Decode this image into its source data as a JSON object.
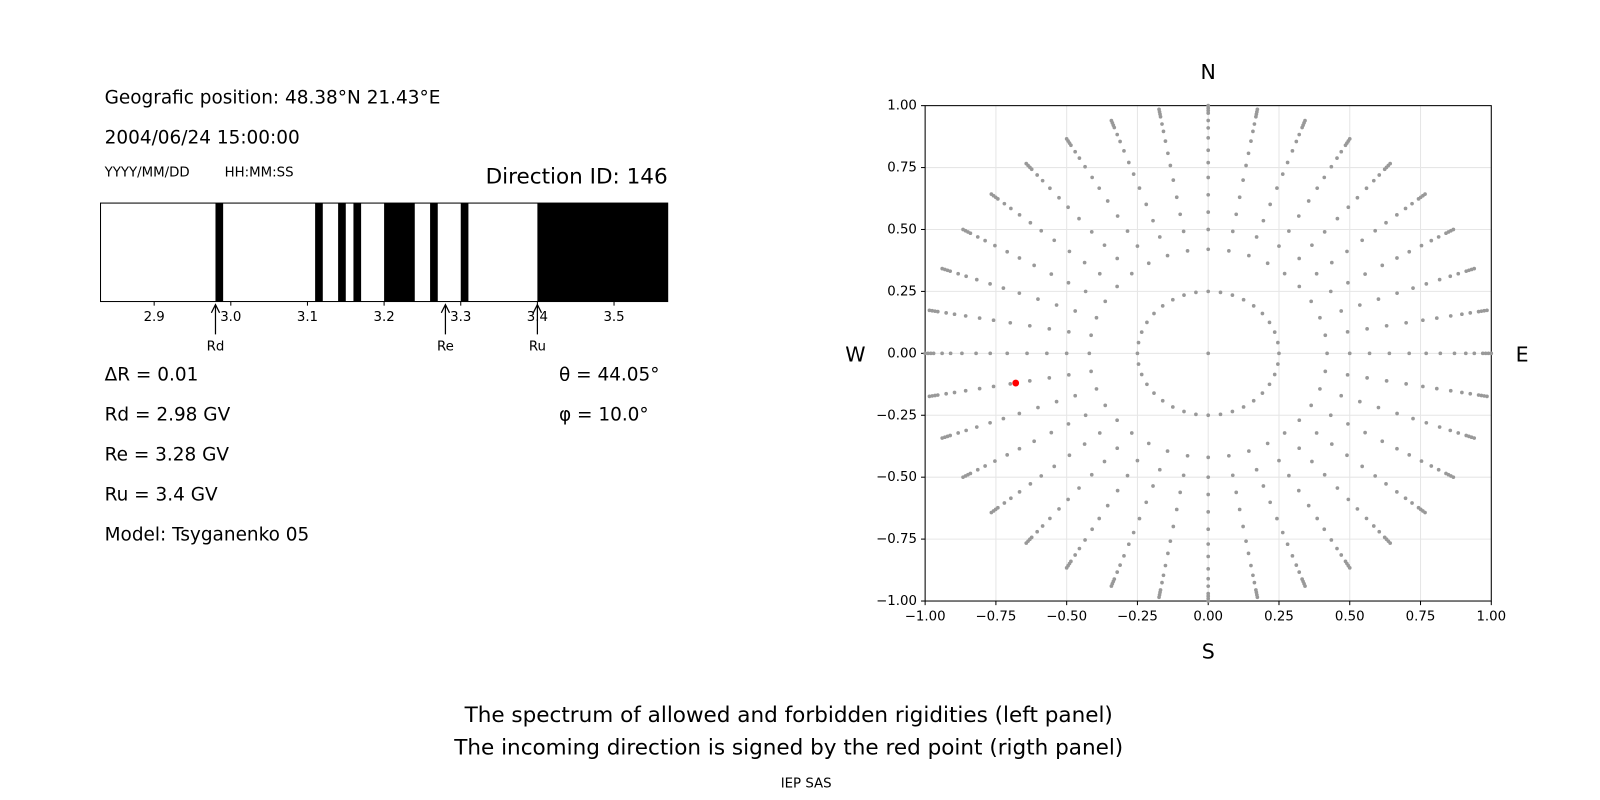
{
  "header": {
    "position": "Geografic position: 48.38°N 21.43°E",
    "datetime": "2004/06/24 15:00:00",
    "date_format": "YYYY/MM/DD",
    "time_format": "HH:MM:SS",
    "direction": "Direction ID: 146"
  },
  "stats": {
    "left": [
      "ΔR = 0.01",
      "Rd = 2.98 GV",
      "Re = 3.28 GV",
      "Ru = 3.4 GV",
      "Model: Tsyganenko 05"
    ],
    "right": [
      "θ = 44.05°",
      "φ = 10.0°"
    ]
  },
  "chart_data": [
    {
      "type": "spectrum",
      "xlim": [
        2.83,
        3.57
      ],
      "xticks": [
        2.9,
        {
          "value": 3,
          "label": "3.0"
        },
        3.1,
        3.2,
        3.3,
        3.4,
        3.5
      ],
      "color": "#000000",
      "bands": [
        [
          2.98,
          2.99
        ],
        [
          3.11,
          3.12
        ],
        [
          3.14,
          3.15
        ],
        [
          3.16,
          3.17
        ],
        [
          3.2,
          3.24
        ],
        [
          3.26,
          3.27
        ],
        [
          3.3,
          3.31
        ],
        [
          3.4,
          3.57
        ]
      ],
      "markers": [
        {
          "label": "Rd",
          "value": 2.98
        },
        {
          "label": "Re",
          "value": 3.28
        },
        {
          "label": "Ru",
          "value": 3.4
        }
      ]
    },
    {
      "type": "scatter",
      "xlim": [
        -1,
        1
      ],
      "ylim": [
        -1,
        1
      ],
      "grid": true,
      "xticks": [
        {
          "value": -1,
          "label": "−1.00"
        },
        {
          "value": -0.75,
          "label": "−0.75"
        },
        {
          "value": -0.5,
          "label": "−0.50"
        },
        {
          "value": -0.25,
          "label": "−0.25"
        },
        {
          "value": 0,
          "label": "0.00"
        },
        {
          "value": 0.25,
          "label": "0.25"
        },
        {
          "value": 0.5,
          "label": "0.50"
        },
        {
          "value": 0.75,
          "label": "0.75"
        },
        {
          "value": 1,
          "label": "1.00"
        }
      ],
      "yticks": [
        {
          "value": -1,
          "label": "−1.00"
        },
        {
          "value": -0.75,
          "label": "−0.75"
        },
        {
          "value": -0.5,
          "label": "−0.50"
        },
        {
          "value": -0.25,
          "label": "−0.25"
        },
        {
          "value": 0,
          "label": "0.00"
        },
        {
          "value": 0.25,
          "label": "0.25"
        },
        {
          "value": 0.5,
          "label": "0.50"
        },
        {
          "value": 0.75,
          "label": "0.75"
        },
        {
          "value": 1,
          "label": "1.00"
        }
      ],
      "compass": {
        "north": "N",
        "south": "S",
        "west": "W",
        "east": "E"
      },
      "grid_points": {
        "color": "#999999",
        "azimuths": [
          0,
          10,
          20,
          30,
          40,
          50,
          60,
          70,
          80,
          90,
          100,
          110,
          120,
          130,
          140,
          150,
          160,
          170,
          180,
          190,
          200,
          210,
          220,
          230,
          240,
          250,
          260,
          270,
          280,
          290,
          300,
          310,
          320,
          330,
          340,
          350
        ],
        "radii": [
          0.25,
          0.42,
          0.5,
          0.57,
          0.64,
          0.71,
          0.77,
          0.82,
          0.87,
          0.91,
          0.94,
          0.97,
          0.98,
          0.99,
          1.0
        ],
        "center": {
          "x": 0,
          "y": 0
        }
      },
      "selected": {
        "color": "#ff0000",
        "x": -0.68,
        "y": -0.12
      }
    }
  ],
  "footer": {
    "lines": [
      "The spectrum of allowed and forbidden rigidities (left panel)",
      "The incoming direction is signed by the red point (rigth panel)"
    ],
    "credit": "IEP SAS"
  }
}
